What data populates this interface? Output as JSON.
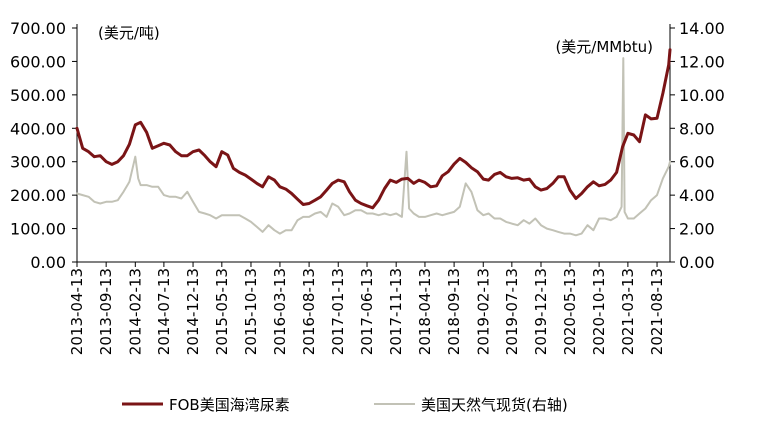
{
  "chart_data": {
    "type": "line",
    "y_left_label": "(美元/吨)",
    "y_right_label": "(美元/MMbtu)",
    "ylim_left": [
      0,
      700
    ],
    "ylim_right": [
      0,
      14
    ],
    "y_left_ticks": [
      "0.00",
      "100.00",
      "200.00",
      "300.00",
      "400.00",
      "500.00",
      "600.00",
      "700.00"
    ],
    "y_right_ticks": [
      "0.00",
      "2.00",
      "4.00",
      "6.00",
      "8.00",
      "10.00",
      "12.00",
      "14.00"
    ],
    "x_ticks": [
      "2013-04-13",
      "2013-09-13",
      "2014-02-13",
      "2014-07-13",
      "2014-12-13",
      "2015-05-13",
      "2015-10-13",
      "2016-03-13",
      "2016-08-13",
      "2017-01-13",
      "2017-06-13",
      "2017-11-13",
      "2018-04-13",
      "2018-09-13",
      "2019-02-13",
      "2019-07-13",
      "2019-12-13",
      "2020-05-13",
      "2020-10-13",
      "2021-03-13",
      "2021-08-13"
    ],
    "x_range": [
      "2013-04-13",
      "2021-10-20"
    ],
    "grid": false,
    "legend_position": "bottom",
    "series": [
      {
        "name": "FOB美国海湾尿素",
        "axis": "left",
        "color": "#7a1416",
        "points": [
          [
            "2013-04-13",
            400
          ],
          [
            "2013-05-13",
            340
          ],
          [
            "2013-06-13",
            330
          ],
          [
            "2013-07-13",
            315
          ],
          [
            "2013-08-13",
            318
          ],
          [
            "2013-09-13",
            300
          ],
          [
            "2013-10-13",
            292
          ],
          [
            "2013-11-13",
            300
          ],
          [
            "2013-12-13",
            318
          ],
          [
            "2014-01-13",
            352
          ],
          [
            "2014-02-13",
            410
          ],
          [
            "2014-03-13",
            418
          ],
          [
            "2014-04-13",
            388
          ],
          [
            "2014-05-13",
            340
          ],
          [
            "2014-06-13",
            348
          ],
          [
            "2014-07-13",
            355
          ],
          [
            "2014-08-13",
            350
          ],
          [
            "2014-09-13",
            330
          ],
          [
            "2014-10-13",
            318
          ],
          [
            "2014-11-13",
            318
          ],
          [
            "2014-12-13",
            330
          ],
          [
            "2015-01-13",
            335
          ],
          [
            "2015-02-13",
            318
          ],
          [
            "2015-03-13",
            300
          ],
          [
            "2015-04-13",
            285
          ],
          [
            "2015-05-13",
            330
          ],
          [
            "2015-06-13",
            320
          ],
          [
            "2015-07-13",
            280
          ],
          [
            "2015-08-13",
            268
          ],
          [
            "2015-09-13",
            260
          ],
          [
            "2015-10-13",
            248
          ],
          [
            "2015-11-13",
            235
          ],
          [
            "2015-12-13",
            225
          ],
          [
            "2016-01-13",
            255
          ],
          [
            "2016-02-13",
            245
          ],
          [
            "2016-03-13",
            225
          ],
          [
            "2016-04-13",
            218
          ],
          [
            "2016-05-13",
            205
          ],
          [
            "2016-06-13",
            188
          ],
          [
            "2016-07-13",
            172
          ],
          [
            "2016-08-13",
            175
          ],
          [
            "2016-09-13",
            185
          ],
          [
            "2016-10-13",
            195
          ],
          [
            "2016-11-13",
            215
          ],
          [
            "2016-12-13",
            235
          ],
          [
            "2017-01-13",
            245
          ],
          [
            "2017-02-13",
            240
          ],
          [
            "2017-03-13",
            210
          ],
          [
            "2017-04-13",
            185
          ],
          [
            "2017-05-13",
            175
          ],
          [
            "2017-06-13",
            168
          ],
          [
            "2017-07-13",
            162
          ],
          [
            "2017-08-13",
            185
          ],
          [
            "2017-09-13",
            220
          ],
          [
            "2017-10-13",
            245
          ],
          [
            "2017-11-13",
            238
          ],
          [
            "2017-12-13",
            248
          ],
          [
            "2018-01-13",
            250
          ],
          [
            "2018-02-13",
            235
          ],
          [
            "2018-03-13",
            245
          ],
          [
            "2018-04-13",
            238
          ],
          [
            "2018-05-13",
            225
          ],
          [
            "2018-06-13",
            228
          ],
          [
            "2018-07-13",
            258
          ],
          [
            "2018-08-13",
            270
          ],
          [
            "2018-09-13",
            293
          ],
          [
            "2018-10-13",
            310
          ],
          [
            "2018-11-13",
            298
          ],
          [
            "2018-12-13",
            282
          ],
          [
            "2019-01-13",
            270
          ],
          [
            "2019-02-13",
            248
          ],
          [
            "2019-03-13",
            245
          ],
          [
            "2019-04-13",
            262
          ],
          [
            "2019-05-13",
            268
          ],
          [
            "2019-06-13",
            255
          ],
          [
            "2019-07-13",
            250
          ],
          [
            "2019-08-13",
            252
          ],
          [
            "2019-09-13",
            245
          ],
          [
            "2019-10-13",
            248
          ],
          [
            "2019-11-13",
            225
          ],
          [
            "2019-12-13",
            215
          ],
          [
            "2020-01-13",
            220
          ],
          [
            "2020-02-13",
            235
          ],
          [
            "2020-03-13",
            255
          ],
          [
            "2020-04-13",
            255
          ],
          [
            "2020-05-13",
            215
          ],
          [
            "2020-06-13",
            190
          ],
          [
            "2020-07-13",
            205
          ],
          [
            "2020-08-13",
            225
          ],
          [
            "2020-09-13",
            240
          ],
          [
            "2020-10-13",
            228
          ],
          [
            "2020-11-13",
            232
          ],
          [
            "2020-12-13",
            245
          ],
          [
            "2021-01-13",
            268
          ],
          [
            "2021-02-13",
            345
          ],
          [
            "2021-03-13",
            385
          ],
          [
            "2021-04-13",
            380
          ],
          [
            "2021-05-13",
            360
          ],
          [
            "2021-06-13",
            440
          ],
          [
            "2021-07-13",
            428
          ],
          [
            "2021-08-13",
            430
          ],
          [
            "2021-09-13",
            505
          ],
          [
            "2021-10-13",
            590
          ],
          [
            "2021-10-20",
            635
          ]
        ]
      },
      {
        "name": "美国天然气现货(右轴)",
        "axis": "right",
        "color": "#c2c2b6",
        "points": [
          [
            "2013-04-13",
            4.1
          ],
          [
            "2013-05-13",
            4.0
          ],
          [
            "2013-06-13",
            3.9
          ],
          [
            "2013-07-13",
            3.6
          ],
          [
            "2013-08-13",
            3.5
          ],
          [
            "2013-09-13",
            3.6
          ],
          [
            "2013-10-13",
            3.6
          ],
          [
            "2013-11-13",
            3.7
          ],
          [
            "2013-12-13",
            4.2
          ],
          [
            "2014-01-13",
            4.8
          ],
          [
            "2014-02-13",
            6.3
          ],
          [
            "2014-02-28",
            5.0
          ],
          [
            "2014-03-13",
            4.6
          ],
          [
            "2014-04-13",
            4.6
          ],
          [
            "2014-05-13",
            4.5
          ],
          [
            "2014-06-13",
            4.5
          ],
          [
            "2014-07-13",
            4.0
          ],
          [
            "2014-08-13",
            3.9
          ],
          [
            "2014-09-13",
            3.9
          ],
          [
            "2014-10-13",
            3.8
          ],
          [
            "2014-11-13",
            4.2
          ],
          [
            "2014-12-13",
            3.6
          ],
          [
            "2015-01-13",
            3.0
          ],
          [
            "2015-02-13",
            2.9
          ],
          [
            "2015-03-13",
            2.8
          ],
          [
            "2015-04-13",
            2.6
          ],
          [
            "2015-05-13",
            2.8
          ],
          [
            "2015-06-13",
            2.8
          ],
          [
            "2015-07-13",
            2.8
          ],
          [
            "2015-08-13",
            2.8
          ],
          [
            "2015-09-13",
            2.6
          ],
          [
            "2015-10-13",
            2.4
          ],
          [
            "2015-11-13",
            2.1
          ],
          [
            "2015-12-13",
            1.8
          ],
          [
            "2016-01-13",
            2.2
          ],
          [
            "2016-02-13",
            1.9
          ],
          [
            "2016-03-13",
            1.7
          ],
          [
            "2016-04-13",
            1.9
          ],
          [
            "2016-05-13",
            1.9
          ],
          [
            "2016-06-13",
            2.5
          ],
          [
            "2016-07-13",
            2.7
          ],
          [
            "2016-08-13",
            2.7
          ],
          [
            "2016-09-13",
            2.9
          ],
          [
            "2016-10-13",
            3.0
          ],
          [
            "2016-11-13",
            2.7
          ],
          [
            "2016-12-13",
            3.5
          ],
          [
            "2017-01-13",
            3.3
          ],
          [
            "2017-02-13",
            2.8
          ],
          [
            "2017-03-13",
            2.9
          ],
          [
            "2017-04-13",
            3.1
          ],
          [
            "2017-05-13",
            3.1
          ],
          [
            "2017-06-13",
            2.9
          ],
          [
            "2017-07-13",
            2.9
          ],
          [
            "2017-08-13",
            2.8
          ],
          [
            "2017-09-13",
            2.9
          ],
          [
            "2017-10-13",
            2.8
          ],
          [
            "2017-11-13",
            2.9
          ],
          [
            "2017-12-13",
            2.7
          ],
          [
            "2018-01-06",
            6.6
          ],
          [
            "2018-01-20",
            3.2
          ],
          [
            "2018-02-13",
            2.9
          ],
          [
            "2018-03-13",
            2.7
          ],
          [
            "2018-04-13",
            2.7
          ],
          [
            "2018-05-13",
            2.8
          ],
          [
            "2018-06-13",
            2.9
          ],
          [
            "2018-07-13",
            2.8
          ],
          [
            "2018-08-13",
            2.9
          ],
          [
            "2018-09-13",
            3.0
          ],
          [
            "2018-10-13",
            3.3
          ],
          [
            "2018-11-13",
            4.7
          ],
          [
            "2018-12-13",
            4.2
          ],
          [
            "2019-01-13",
            3.1
          ],
          [
            "2019-02-13",
            2.8
          ],
          [
            "2019-03-13",
            2.9
          ],
          [
            "2019-04-13",
            2.6
          ],
          [
            "2019-05-13",
            2.6
          ],
          [
            "2019-06-13",
            2.4
          ],
          [
            "2019-07-13",
            2.3
          ],
          [
            "2019-08-13",
            2.2
          ],
          [
            "2019-09-13",
            2.5
          ],
          [
            "2019-10-13",
            2.3
          ],
          [
            "2019-11-13",
            2.6
          ],
          [
            "2019-12-13",
            2.2
          ],
          [
            "2020-01-13",
            2.0
          ],
          [
            "2020-02-13",
            1.9
          ],
          [
            "2020-03-13",
            1.8
          ],
          [
            "2020-04-13",
            1.7
          ],
          [
            "2020-05-13",
            1.7
          ],
          [
            "2020-06-13",
            1.6
          ],
          [
            "2020-07-13",
            1.7
          ],
          [
            "2020-08-13",
            2.2
          ],
          [
            "2020-09-13",
            1.9
          ],
          [
            "2020-10-13",
            2.6
          ],
          [
            "2020-11-13",
            2.6
          ],
          [
            "2020-12-13",
            2.5
          ],
          [
            "2021-01-13",
            2.7
          ],
          [
            "2021-02-08",
            3.3
          ],
          [
            "2021-02-17",
            12.2
          ],
          [
            "2021-02-24",
            3.0
          ],
          [
            "2021-03-13",
            2.6
          ],
          [
            "2021-04-13",
            2.6
          ],
          [
            "2021-05-13",
            2.9
          ],
          [
            "2021-06-13",
            3.2
          ],
          [
            "2021-07-13",
            3.7
          ],
          [
            "2021-08-13",
            4.0
          ],
          [
            "2021-09-13",
            5.0
          ],
          [
            "2021-10-13",
            5.7
          ],
          [
            "2021-10-20",
            6.0
          ]
        ]
      }
    ]
  }
}
